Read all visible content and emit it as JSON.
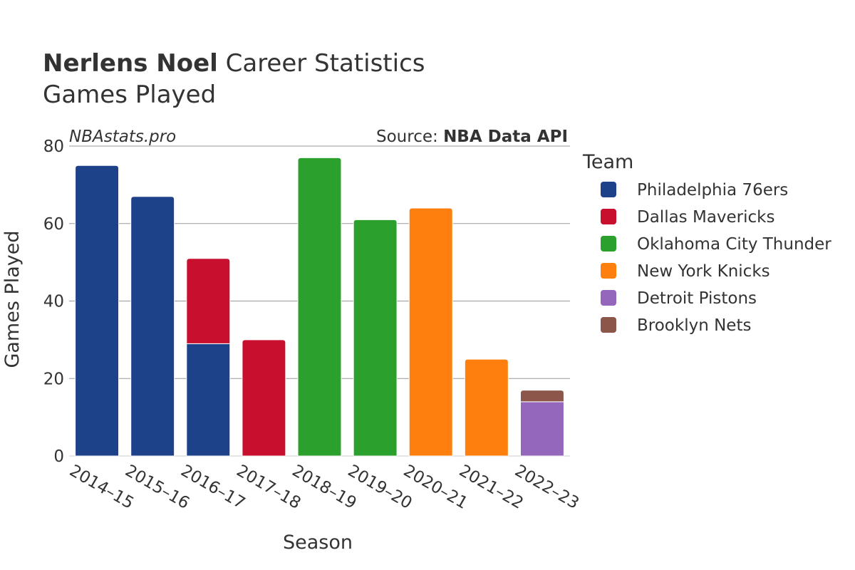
{
  "header": {
    "title_bold": "Nerlens Noel",
    "title_rest": " Career Statistics",
    "subtitle": "Games Played"
  },
  "watermark": "NBAstats.pro",
  "source": {
    "prefix": "Source: ",
    "name": "NBA Data API"
  },
  "colors": {
    "Philadelphia 76ers": "#1d428a",
    "Dallas Mavericks": "#c8102e",
    "Oklahoma City Thunder": "#2ca02c",
    "New York Knicks": "#ff7f0e",
    "Detroit Pistons": "#9467bd",
    "Brooklyn Nets": "#8c564b"
  },
  "chart_data": {
    "type": "bar",
    "stacked": true,
    "title": "Nerlens Noel Career Statistics",
    "subtitle": "Games Played",
    "xlabel": "Season",
    "ylabel": "Games Played",
    "ylim": [
      0,
      80
    ],
    "yticks": [
      0,
      20,
      40,
      60,
      80
    ],
    "grid": true,
    "legend_title": "Team",
    "legend_position": "right",
    "categories": [
      "2014–15",
      "2015–16",
      "2016–17",
      "2017–18",
      "2018–19",
      "2019–20",
      "2020–21",
      "2021–22",
      "2022–23"
    ],
    "series": [
      {
        "name": "Philadelphia 76ers",
        "values": [
          75,
          67,
          29,
          0,
          0,
          0,
          0,
          0,
          0
        ]
      },
      {
        "name": "Dallas Mavericks",
        "values": [
          0,
          0,
          22,
          30,
          0,
          0,
          0,
          0,
          0
        ]
      },
      {
        "name": "Oklahoma City Thunder",
        "values": [
          0,
          0,
          0,
          0,
          77,
          61,
          0,
          0,
          0
        ]
      },
      {
        "name": "New York Knicks",
        "values": [
          0,
          0,
          0,
          0,
          0,
          0,
          64,
          25,
          0
        ]
      },
      {
        "name": "Detroit Pistons",
        "values": [
          0,
          0,
          0,
          0,
          0,
          0,
          0,
          0,
          14
        ]
      },
      {
        "name": "Brooklyn Nets",
        "values": [
          0,
          0,
          0,
          0,
          0,
          0,
          0,
          0,
          3
        ]
      }
    ]
  }
}
